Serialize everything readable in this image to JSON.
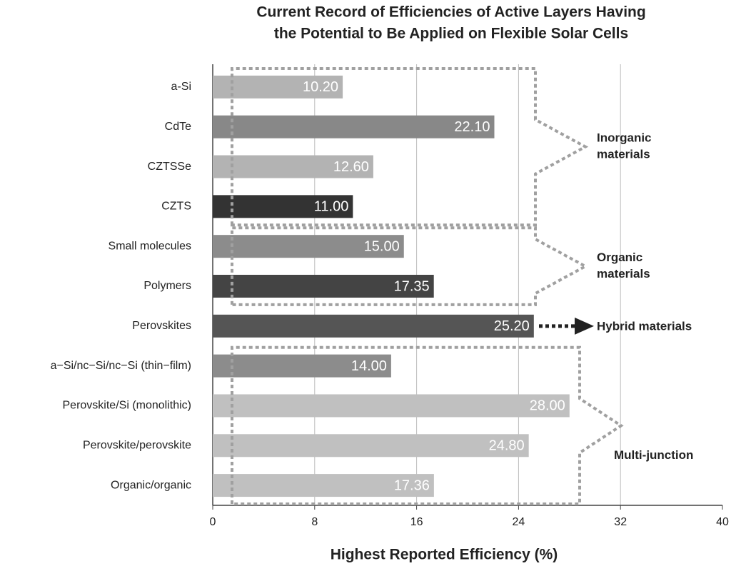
{
  "chart_data": {
    "type": "hbar",
    "title": [
      "Current Record of Efficiencies of Active Layers Having",
      "the Potential to Be Applied on Flexible Solar Cells"
    ],
    "categories": [
      "a-Si",
      "CdTe",
      "CZTSSe",
      "CZTS",
      "Small molecules",
      "Polymers",
      "Perovskites",
      "a−Si/nc−Si/nc−Si (thin−film)",
      "Perovskite/Si (monolithic)",
      "Perovskite/perovskite",
      "Organic/organic"
    ],
    "values": [
      10.2,
      22.1,
      12.6,
      11.0,
      15.0,
      17.35,
      25.2,
      14.0,
      28.0,
      24.8,
      17.36
    ],
    "value_labels": [
      "10.20",
      "22.10",
      "12.60",
      "11.00",
      "15.00",
      "17.35",
      "25.20",
      "14.00",
      "28.00",
      "24.80",
      "17.36"
    ],
    "colors": [
      "#b3b3b3",
      "#888888",
      "#b3b3b3",
      "#333333",
      "#8c8c8c",
      "#444444",
      "#555555",
      "#8c8c8c",
      "#c0c0c0",
      "#c0c0c0",
      "#c0c0c0"
    ],
    "xlim": [
      0,
      40
    ],
    "xticks": [
      0,
      8,
      16,
      24,
      32,
      40
    ],
    "grid": true,
    "xlabel": "Highest Reported Efficiency (%)",
    "annotations": [
      {
        "lines": [
          "Inorganic",
          "materials"
        ]
      },
      {
        "lines": [
          "Organic",
          "materials"
        ]
      },
      {
        "lines": [
          "Hybrid materials"
        ]
      },
      {
        "lines": [
          "Multi-junction"
        ]
      }
    ]
  }
}
